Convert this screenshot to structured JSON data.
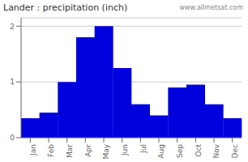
{
  "chart_data": {
    "type": "bar",
    "title": "Lander : precipitation (inch)",
    "categories": [
      "Jan",
      "Feb",
      "Mar",
      "Apr",
      "May",
      "Jun",
      "Jul",
      "Aug",
      "Sep",
      "Oct",
      "Nov",
      "Dec"
    ],
    "values": [
      0.35,
      0.45,
      1.0,
      1.8,
      2.0,
      1.25,
      0.6,
      0.4,
      0.9,
      0.95,
      0.6,
      0.35
    ],
    "color": "#0000dd",
    "ylim": [
      0,
      2.15
    ],
    "yticks": [
      0,
      1,
      2
    ],
    "grid": true,
    "annotations": [
      "www.allmetsat.com"
    ]
  }
}
